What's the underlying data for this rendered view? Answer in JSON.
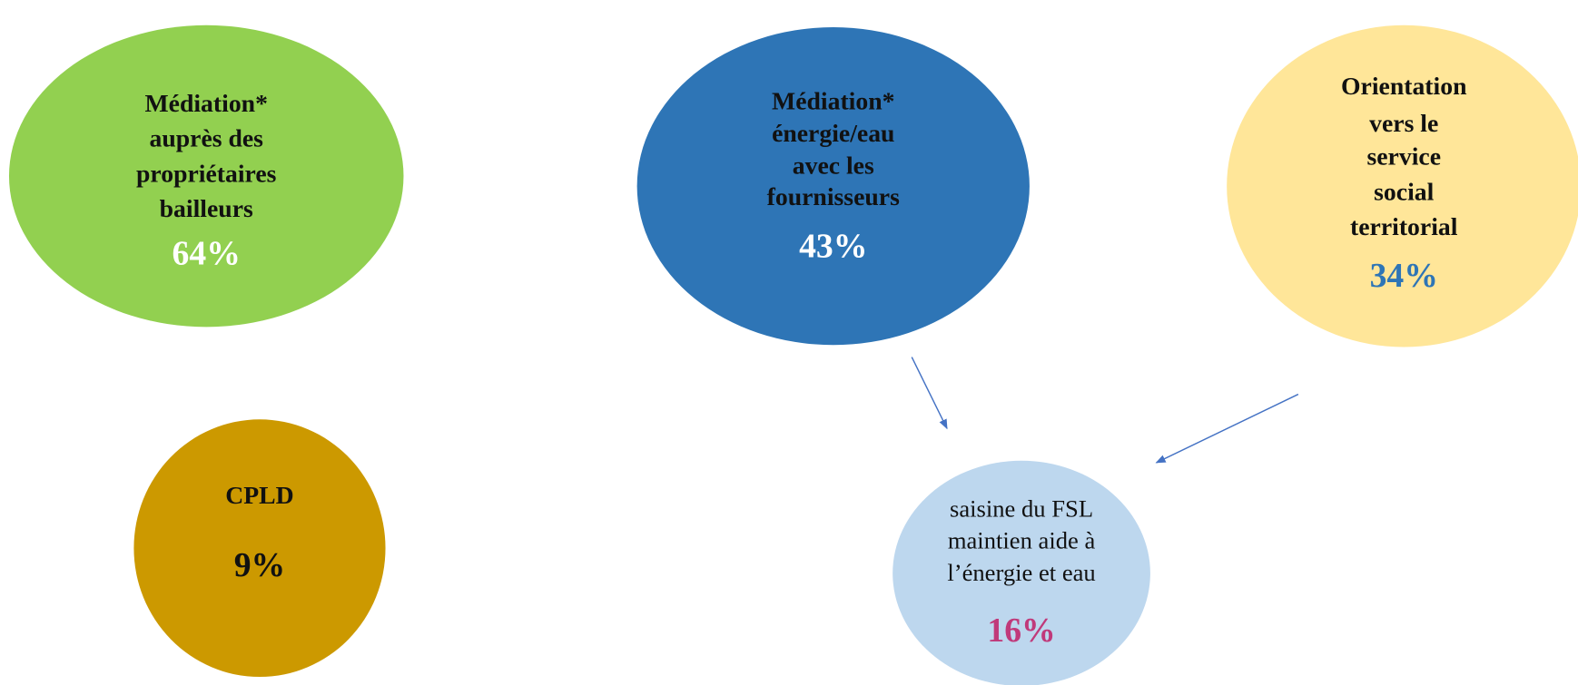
{
  "nodes": [
    {
      "lines": [
        "Médiation*",
        "auprès des",
        "propriétaires",
        "bailleurs"
      ],
      "value": "64%"
    },
    {
      "lines": [
        "Médiation*",
        "énergie/eau",
        "avec les",
        "fournisseurs"
      ],
      "value": "43%"
    },
    {
      "lines": [
        "Orientation",
        "vers le",
        "service",
        "social",
        "territorial"
      ],
      "value": "34%"
    },
    {
      "lines": [
        "CPLD"
      ],
      "value": "9%"
    },
    {
      "lines": [
        "saisine du FSL",
        "maintien aide à",
        "l’énergie et eau"
      ],
      "value": "16%"
    }
  ]
}
